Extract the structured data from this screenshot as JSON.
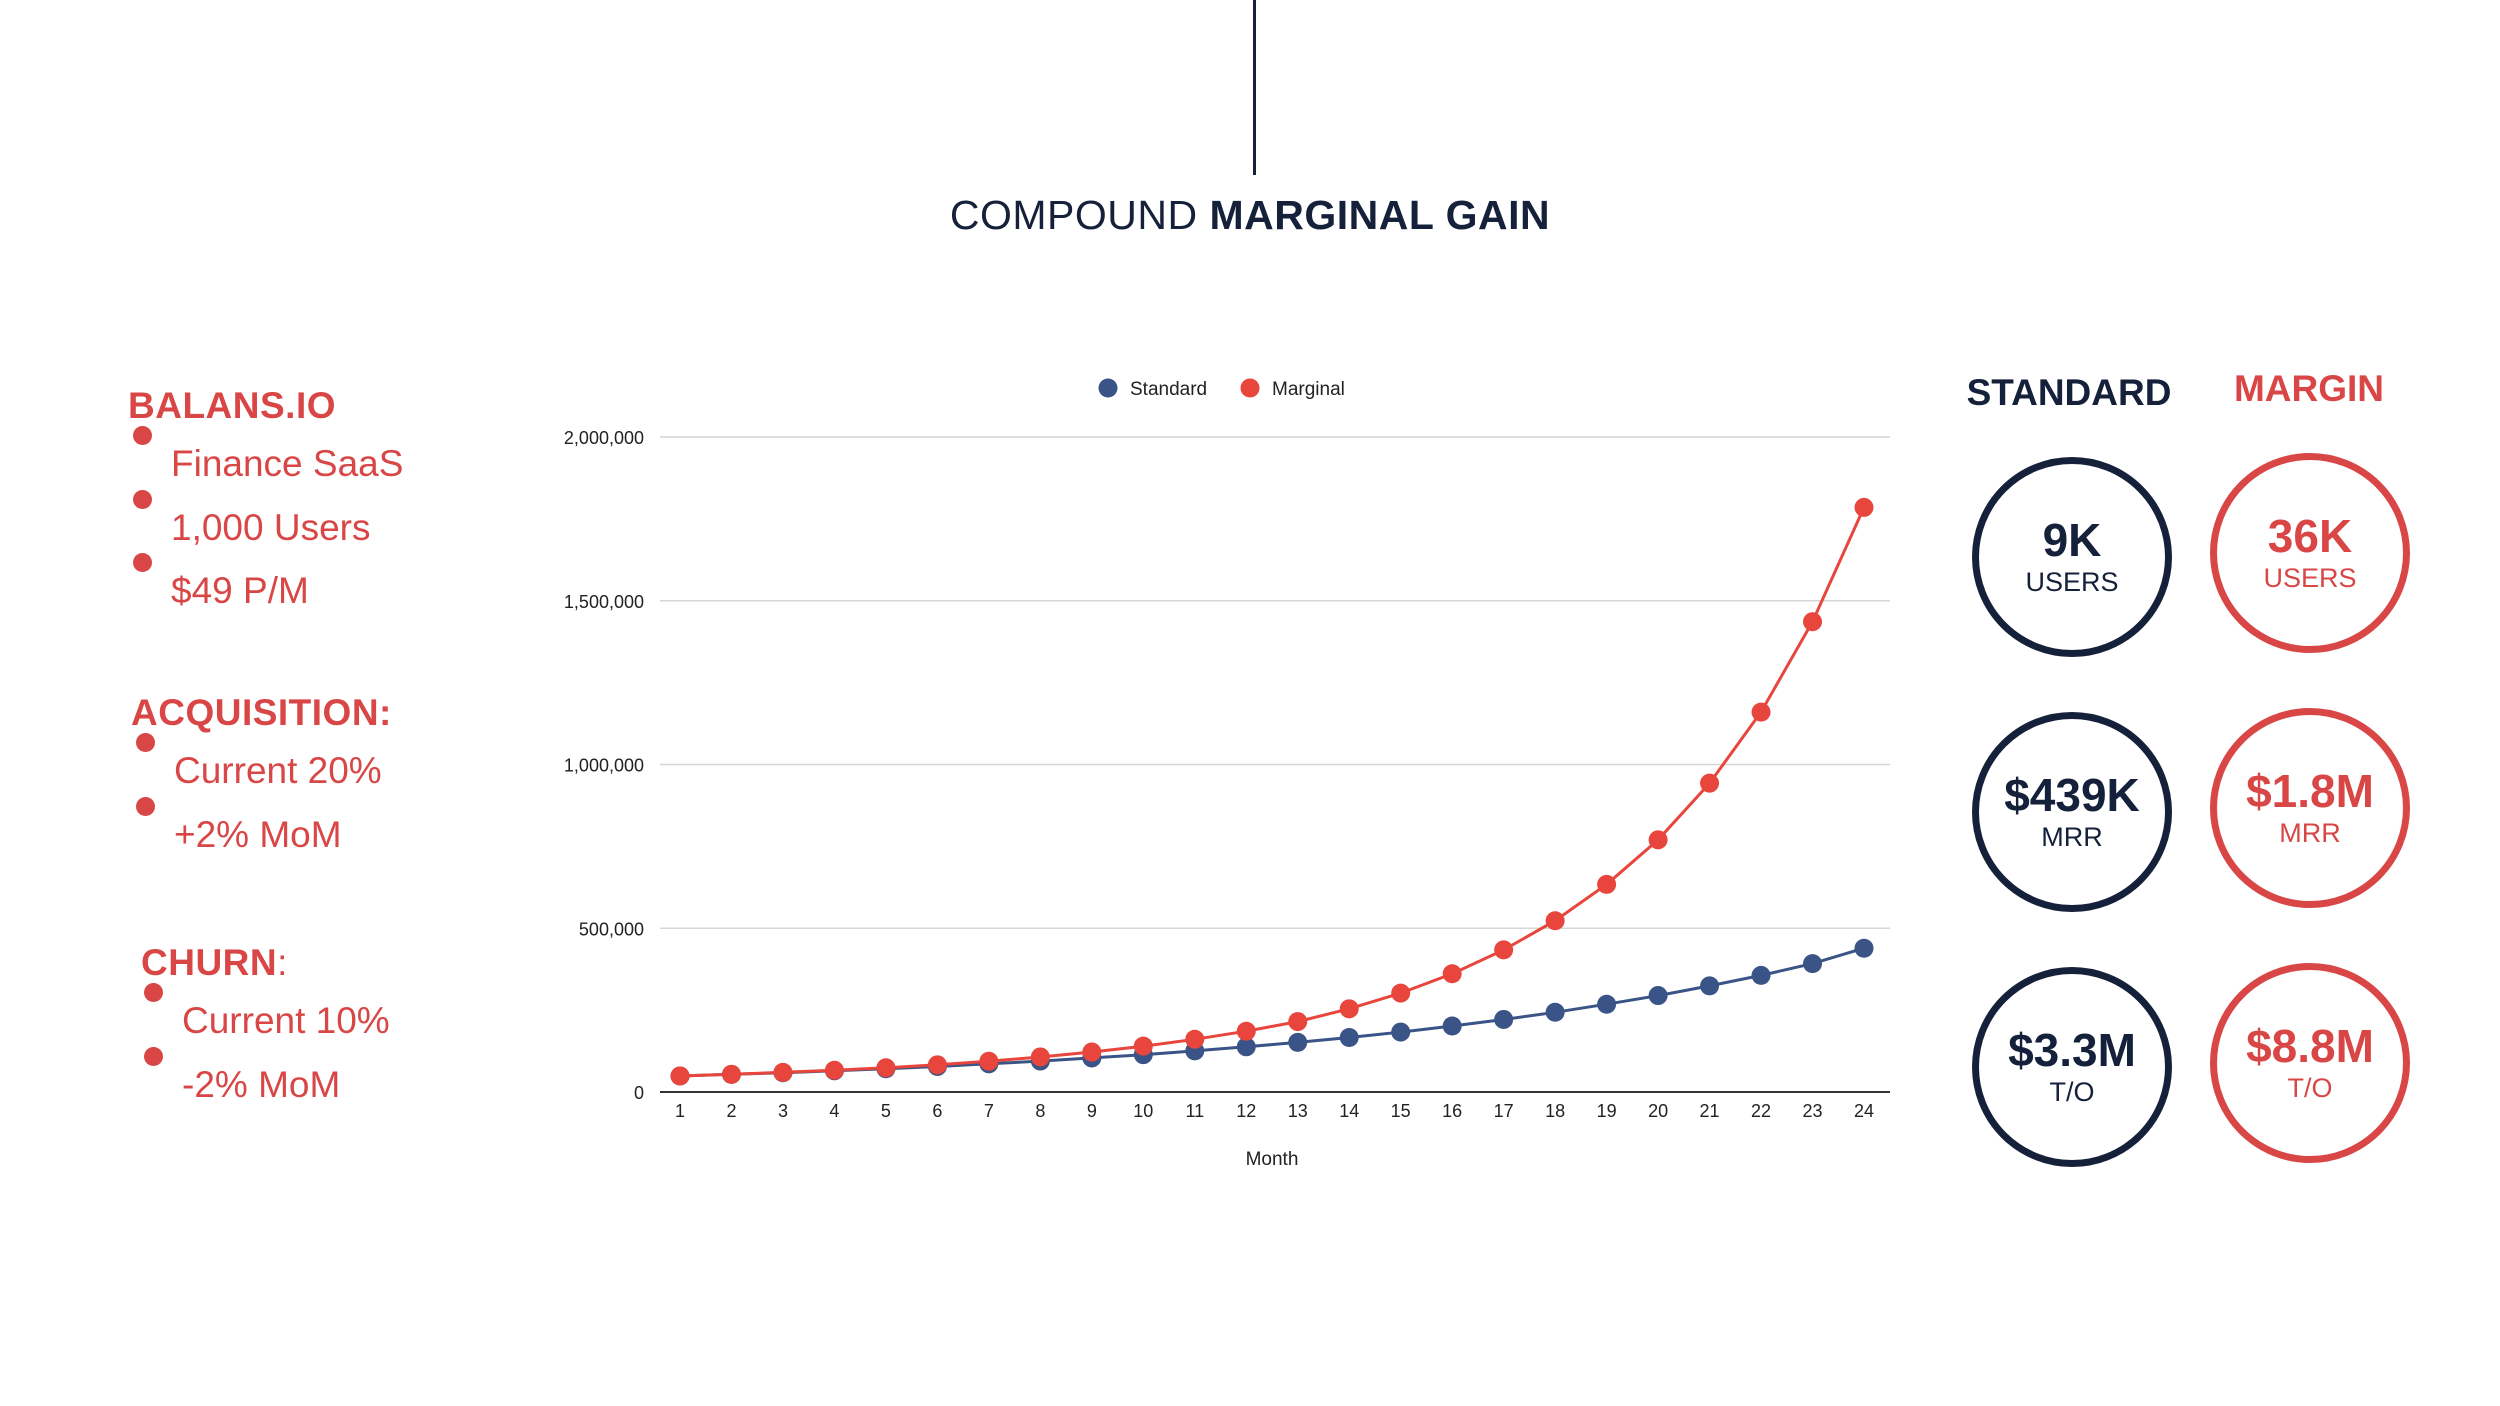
{
  "title": {
    "prefix": "COMPOUND ",
    "bold": "MARGINAL GAIN"
  },
  "left": {
    "company": {
      "heading": "BALANS.IO",
      "items": [
        "Finance SaaS",
        "1,000 Users",
        "$49 P/M"
      ]
    },
    "acquisition": {
      "heading": "ACQUISITION:",
      "items": [
        "Current 20%",
        "+2% MoM"
      ]
    },
    "churn": {
      "heading": "CHURN",
      "heading_suffix": ":",
      "items": [
        "Current 10%",
        "-2% MoM"
      ]
    }
  },
  "stats": {
    "standard": {
      "heading": "STANDARD",
      "users": {
        "value": "9K",
        "label": "USERS"
      },
      "mrr": {
        "value": "$439K",
        "label": "MRR"
      },
      "to": {
        "value": "$3.3M",
        "label": "T/O"
      }
    },
    "margin": {
      "heading": "MARGIN",
      "users": {
        "value": "36K",
        "label": "USERS"
      },
      "mrr": {
        "value": "$1.8M",
        "label": "MRR"
      },
      "to": {
        "value": "$8.8M",
        "label": "T/O"
      }
    }
  },
  "colors": {
    "navy": "#15203a",
    "red": "#d94646",
    "standard": "#3a5487",
    "marginal": "#e8453c"
  },
  "chart_data": {
    "type": "line",
    "xlabel": "Month",
    "ylabel": "",
    "ylim": [
      0,
      2000000
    ],
    "yticks": [
      0,
      500000,
      1000000,
      1500000,
      2000000
    ],
    "ytick_labels": [
      "0",
      "500,000",
      "1,000,000",
      "1,500,000",
      "2,000,000"
    ],
    "grid": true,
    "legend": "top-center",
    "x": [
      1,
      2,
      3,
      4,
      5,
      6,
      7,
      8,
      9,
      10,
      11,
      12,
      13,
      14,
      15,
      16,
      17,
      18,
      19,
      20,
      21,
      22,
      23,
      24
    ],
    "series": [
      {
        "name": "Standard",
        "color": "#3a5487",
        "values": [
          49000,
          53900,
          58800,
          64700,
          71000,
          78000,
          86000,
          94500,
          104000,
          114000,
          125500,
          138000,
          151500,
          166500,
          183000,
          201500,
          221500,
          243500,
          268000,
          294500,
          324000,
          356000,
          392000,
          439000
        ]
      },
      {
        "name": "Marginal",
        "color": "#e8453c",
        "values": [
          49000,
          54000,
          60000,
          66500,
          74000,
          83000,
          94000,
          107000,
          122000,
          140000,
          161000,
          185500,
          215000,
          254000,
          302000,
          361000,
          434000,
          523000,
          634000,
          770000,
          943000,
          1160000,
          1436000,
          1785000
        ]
      }
    ]
  }
}
